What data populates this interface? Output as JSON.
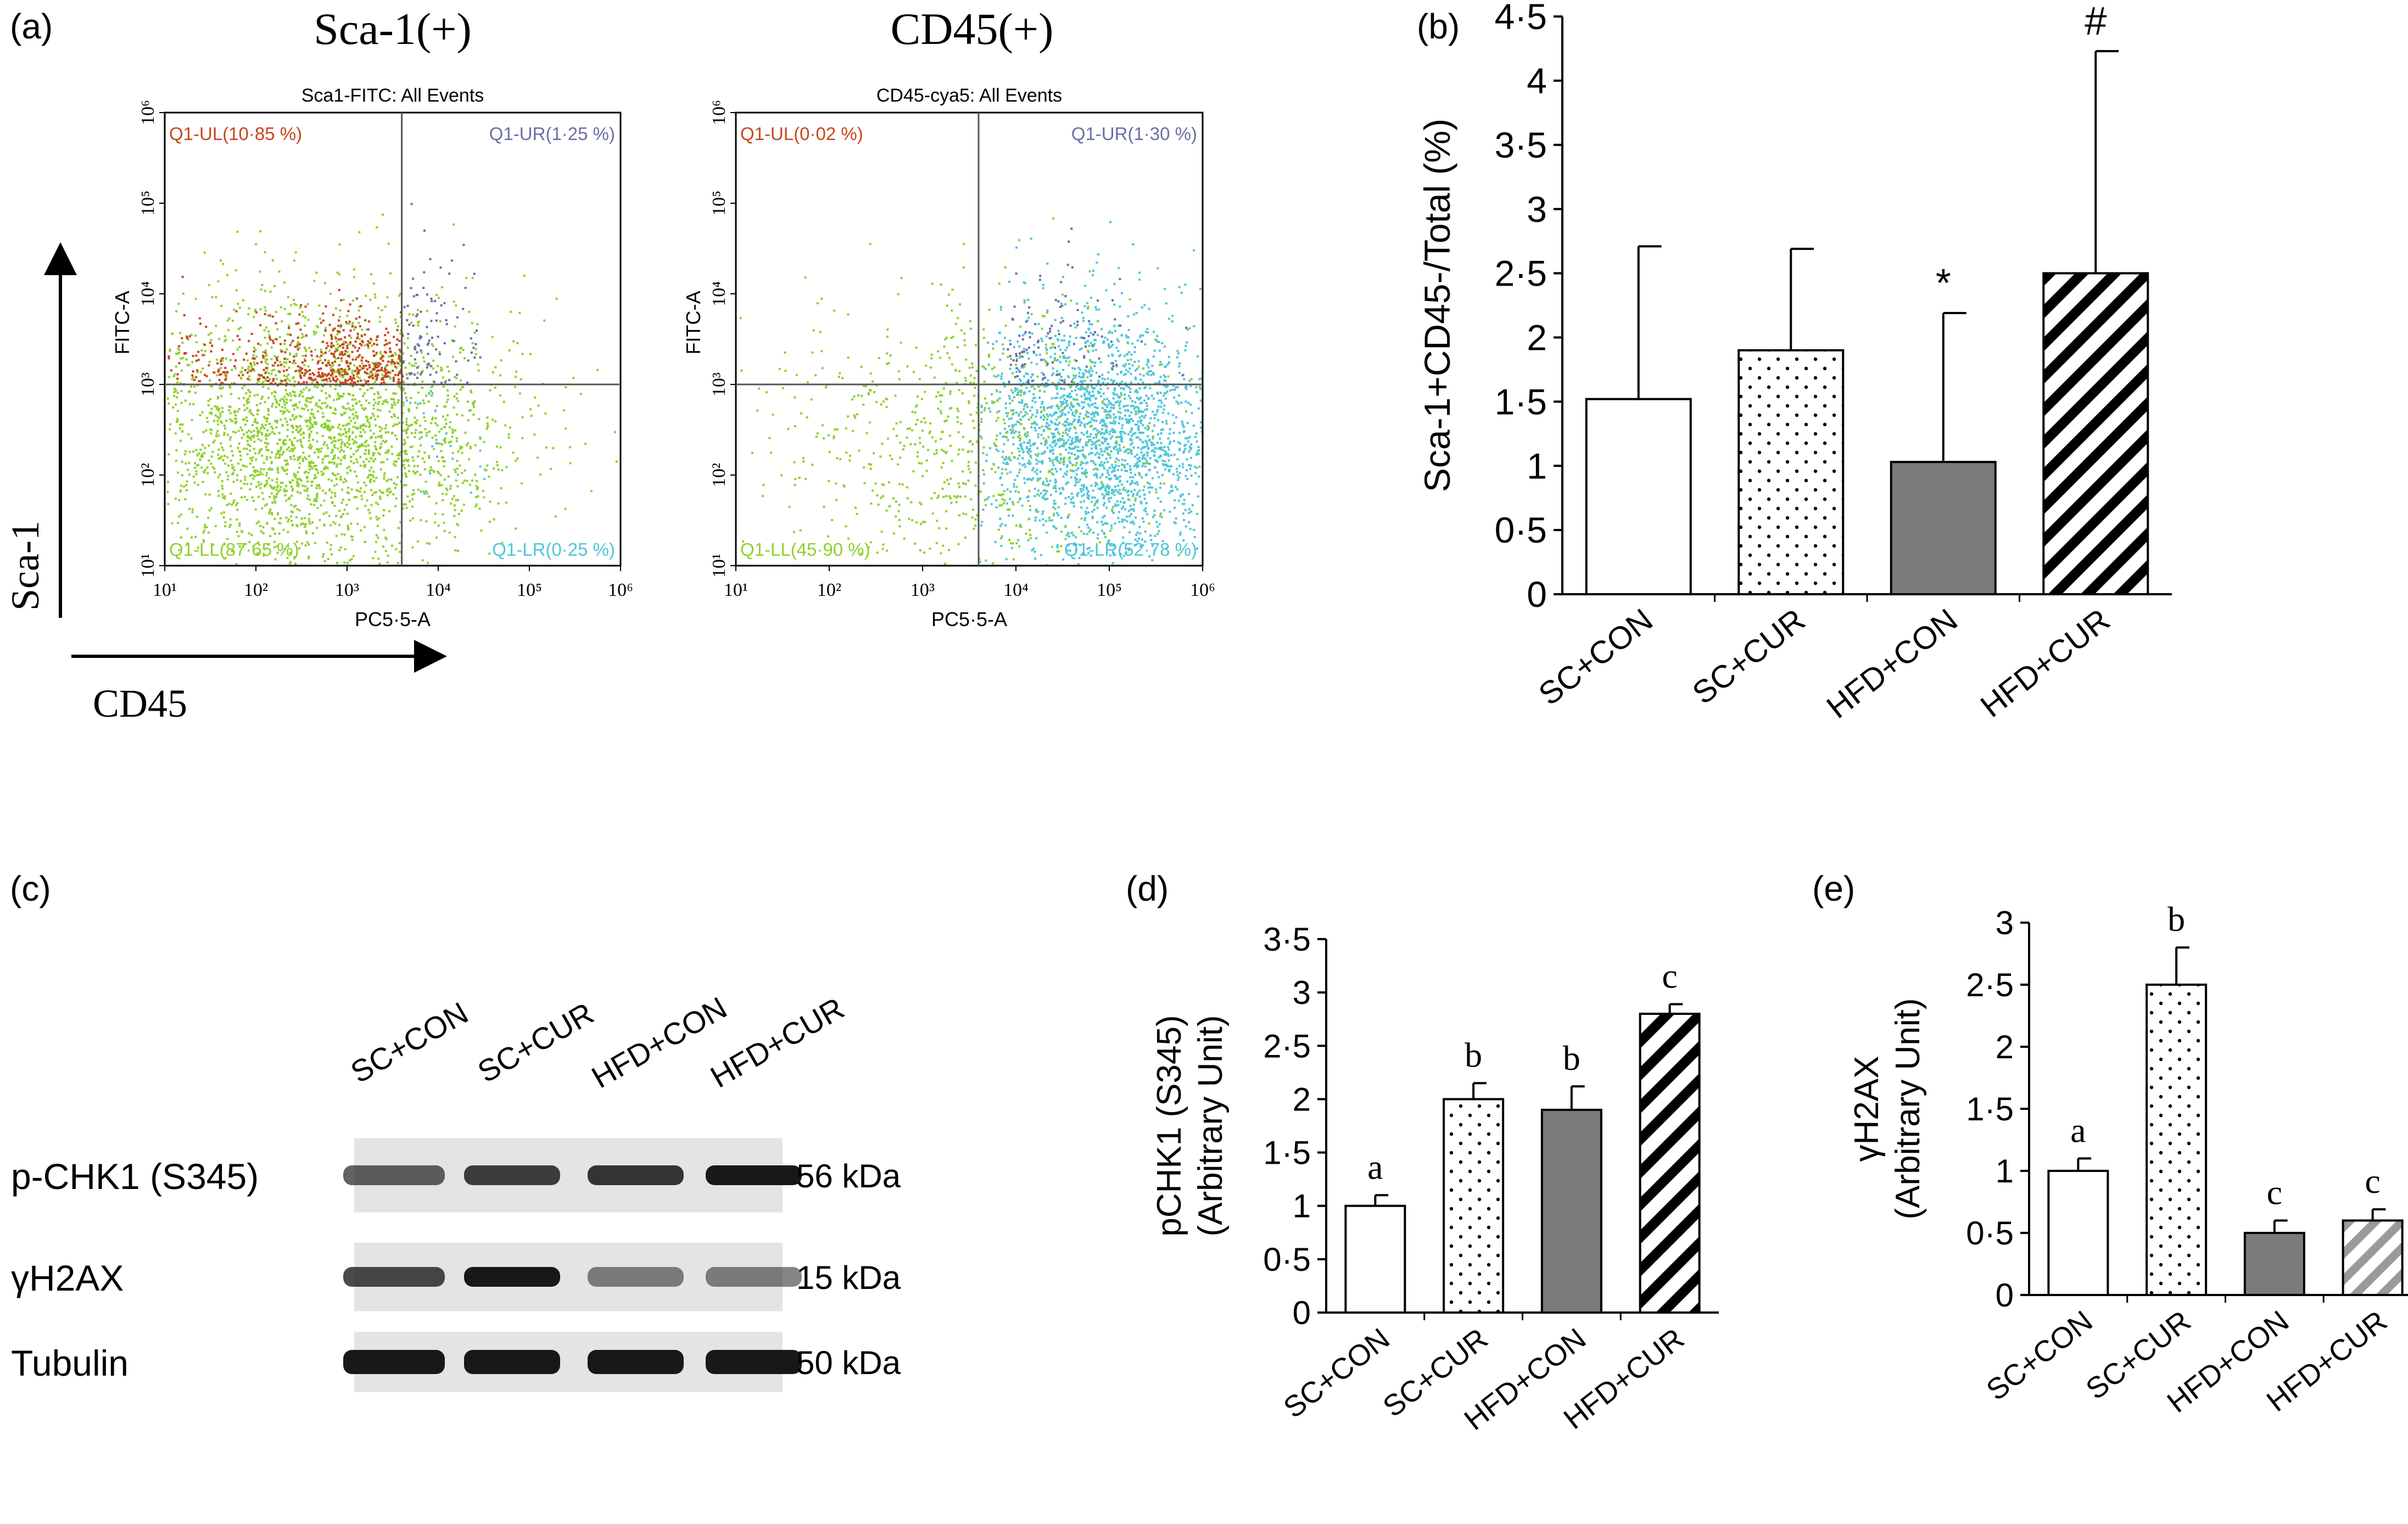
{
  "figure": {
    "panel_labels": [
      "(a)",
      "(b)",
      "(c)",
      "(d)",
      "(e)"
    ]
  },
  "flow": {
    "axis_label_y": "Sca-1",
    "axis_label_x": "CD45",
    "plots": [
      {
        "heading": "Sca-1(+)",
        "subtitle": "Sca1-FITC: All Events",
        "ylabel": "FITC-A",
        "xlabel": "PC5·5-A",
        "quadrants": {
          "ul": "Q1-UL(10·85 %)",
          "ur": "Q1-UR(1·25 %)",
          "ll": "Q1-LL(87·65 %)",
          "lr": "Q1-LR(0·25 %)"
        },
        "quadrant_colors": {
          "ul": "#c8461e",
          "ur": "#6a6fa6",
          "ll": "#8fd12e",
          "lr": "#4fc6d8"
        },
        "gate_decades": {
          "x": 3.6,
          "y": 3.0
        }
      },
      {
        "heading": "CD45(+)",
        "subtitle": "CD45-cya5: All Events",
        "ylabel": "FITC-A",
        "xlabel": "PC5·5-A",
        "quadrants": {
          "ul": "Q1-UL(0·02 %)",
          "ur": "Q1-UR(1·30 %)",
          "ll": "Q1-LL(45·90 %)",
          "lr": "Q1-LR(52·78 %)"
        },
        "quadrant_colors": {
          "ul": "#c8461e",
          "ur": "#6a6fa6",
          "ll": "#8fd12e",
          "lr": "#4fc6d8"
        },
        "gate_decades": {
          "x": 3.6,
          "y": 3.0
        }
      }
    ],
    "tick_labels": [
      "10¹",
      "10²",
      "10³",
      "10⁴",
      "10⁵",
      "10⁶"
    ]
  },
  "western": {
    "lanes": [
      "SC+CON",
      "SC+CUR",
      "HFD+CON",
      "HFD+CUR"
    ],
    "rows": [
      {
        "protein": "p-CHK1 (S345)",
        "size": "56 kDa",
        "intensity": [
          0.55,
          0.75,
          0.8,
          0.95
        ]
      },
      {
        "protein": "γH2AX",
        "size": "15 kDa",
        "intensity": [
          0.7,
          0.95,
          0.35,
          0.35
        ]
      },
      {
        "protein": "Tubulin",
        "size": "50 kDa",
        "intensity": [
          0.95,
          0.95,
          0.95,
          0.95
        ]
      }
    ]
  },
  "chart_data": [
    {
      "panel": "(b)",
      "type": "bar",
      "categories": [
        "SC+CON",
        "SC+CUR",
        "HFD+CON",
        "HFD+CUR"
      ],
      "values": [
        1.52,
        1.9,
        1.03,
        2.5
      ],
      "errors": [
        1.19,
        0.79,
        1.16,
        1.73
      ],
      "annotations": [
        "",
        "",
        "*",
        "#"
      ],
      "fills": [
        "open",
        "dots",
        "solid-grey",
        "hatch-black"
      ],
      "ylabel": "Sca-1+CD45-/Total (%)",
      "ylim": [
        0,
        4.5
      ],
      "yticks": [
        0,
        0.5,
        1,
        1.5,
        2,
        2.5,
        3,
        3.5,
        4,
        4.5
      ],
      "ytick_labels": [
        "0",
        "0·5",
        "1",
        "1·5",
        "2",
        "2·5",
        "3",
        "3·5",
        "4",
        "4·5"
      ]
    },
    {
      "panel": "(d)",
      "type": "bar",
      "categories": [
        "SC+CON",
        "SC+CUR",
        "HFD+CON",
        "HFD+CUR"
      ],
      "values": [
        1.0,
        2.0,
        1.9,
        2.8
      ],
      "errors": [
        0.1,
        0.15,
        0.22,
        0.09
      ],
      "annotations": [
        "a",
        "b",
        "b",
        "c"
      ],
      "fills": [
        "open",
        "dots",
        "solid-grey",
        "hatch-black"
      ],
      "ylabel_lines": [
        "pCHK1 (S345)",
        "(Arbitrary Unit)"
      ],
      "ylim": [
        0,
        3.5
      ],
      "yticks": [
        0,
        0.5,
        1,
        1.5,
        2,
        2.5,
        3,
        3.5
      ],
      "ytick_labels": [
        "0",
        "0·5",
        "1",
        "1·5",
        "2",
        "2·5",
        "3",
        "3·5"
      ]
    },
    {
      "panel": "(e)",
      "type": "bar",
      "categories": [
        "SC+CON",
        "SC+CUR",
        "HFD+CON",
        "HFD+CUR"
      ],
      "values": [
        1.0,
        2.5,
        0.5,
        0.6
      ],
      "errors": [
        0.1,
        0.3,
        0.1,
        0.09
      ],
      "annotations": [
        "a",
        "b",
        "c",
        "c"
      ],
      "fills": [
        "open",
        "dots",
        "solid-grey",
        "hatch-grey"
      ],
      "ylabel_lines": [
        "γH2AX",
        "(Arbitrary Unit)"
      ],
      "ylim": [
        0,
        3
      ],
      "yticks": [
        0,
        0.5,
        1,
        1.5,
        2,
        2.5,
        3
      ],
      "ytick_labels": [
        "0",
        "0·5",
        "1",
        "1·5",
        "2",
        "2·5",
        "3"
      ]
    }
  ],
  "colors": {
    "bar_grey": "#7b7b7b",
    "hatch_grey": "#9a9a9a",
    "axis": "#000000"
  }
}
